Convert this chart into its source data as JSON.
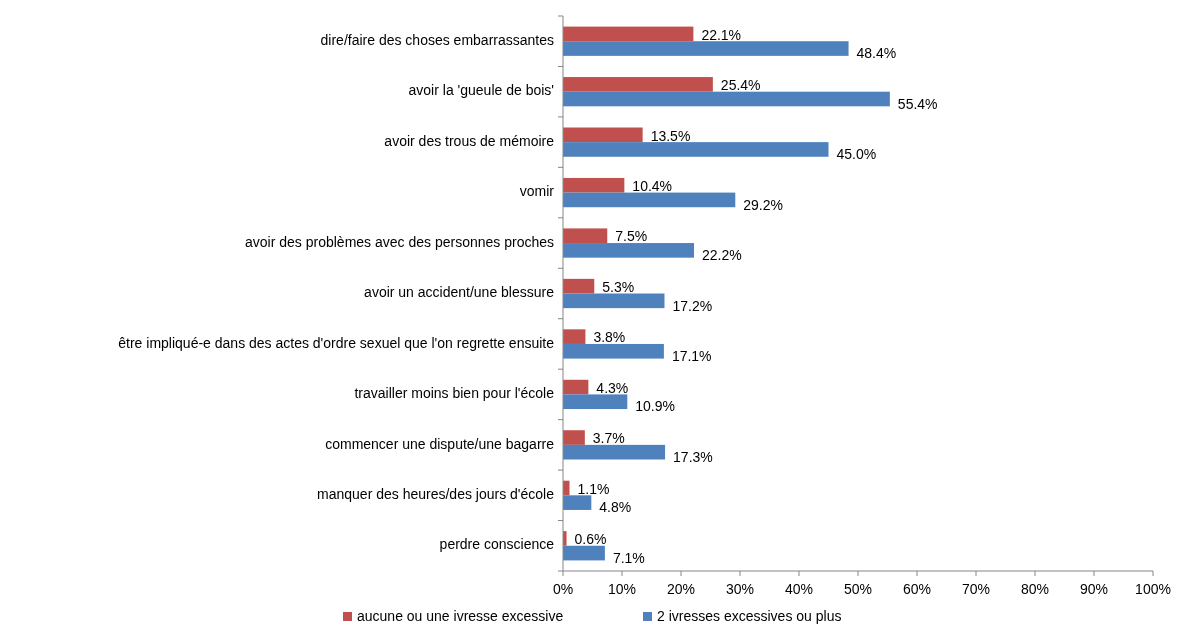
{
  "chart_data": {
    "type": "bar",
    "orientation": "horizontal",
    "categories": [
      "dire/faire des choses embarrassantes",
      "avoir la 'gueule de bois'",
      "avoir des trous de mémoire",
      "vomir",
      "avoir des problèmes avec des personnes proches",
      "avoir un accident/une blessure",
      "être impliqué-e dans des actes d'ordre sexuel que l'on regrette ensuite",
      "travailler moins bien pour l'école",
      "commencer une dispute/une bagarre",
      "manquer des heures/des jours d'école",
      "perdre conscience"
    ],
    "series": [
      {
        "name": "aucune ou une ivresse excessive",
        "color": "#c0504d",
        "values": [
          22.1,
          25.4,
          13.5,
          10.4,
          7.5,
          5.3,
          3.8,
          4.3,
          3.7,
          1.1,
          0.6
        ],
        "value_labels": [
          "22.1%",
          "25.4%",
          "13.5%",
          "10.4%",
          "7.5%",
          "5.3%",
          "3.8%",
          "4.3%",
          "3.7%",
          "1.1%",
          "0.6%"
        ]
      },
      {
        "name": "2 ivresses excessives ou plus",
        "color": "#4f81bd",
        "values": [
          48.4,
          55.4,
          45.0,
          29.2,
          22.2,
          17.2,
          17.1,
          10.9,
          17.3,
          4.8,
          7.1
        ],
        "value_labels": [
          "48.4%",
          "55.4%",
          "45.0%",
          "29.2%",
          "22.2%",
          "17.2%",
          "17.1%",
          "10.9%",
          "17.3%",
          "4.8%",
          "7.1%"
        ]
      }
    ],
    "xlim": [
      0,
      100
    ],
    "xticks": [
      {
        "value": 0,
        "label": "0%"
      },
      {
        "value": 10,
        "label": "10%"
      },
      {
        "value": 20,
        "label": "20%"
      },
      {
        "value": 30,
        "label": "30%"
      },
      {
        "value": 40,
        "label": "40%"
      },
      {
        "value": 50,
        "label": "50%"
      },
      {
        "value": 60,
        "label": "60%"
      },
      {
        "value": 70,
        "label": "70%"
      },
      {
        "value": 80,
        "label": "80%"
      },
      {
        "value": 90,
        "label": "90%"
      },
      {
        "value": 100,
        "label": "100%"
      }
    ],
    "legend": "bottom"
  }
}
